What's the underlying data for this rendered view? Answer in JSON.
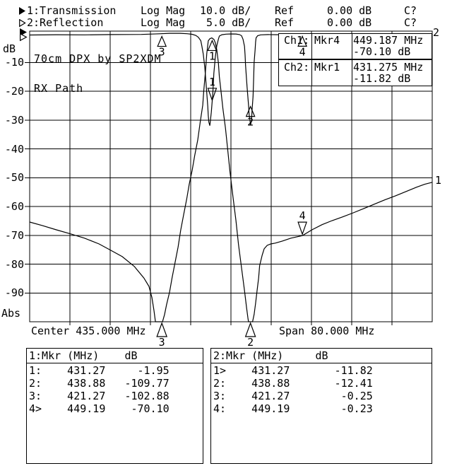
{
  "header": {
    "rows": [
      {
        "trace": "1:Transmission",
        "format": "Log Mag",
        "scale": "10.0 dB/",
        "ref": "Ref",
        "ref_value": "0.00 dB",
        "status": "C?",
        "active": true
      },
      {
        "trace": "2:Reflection",
        "format": "Log Mag",
        "scale": " 5.0 dB/",
        "ref": "Ref",
        "ref_value": "0.00 dB",
        "status": "C?",
        "active": false
      }
    ]
  },
  "axis": {
    "unit": "dB",
    "bottom_label": "Abs",
    "ticks": [
      "-10",
      "-20",
      "-30",
      "-40",
      "-50",
      "-60",
      "-70",
      "-80",
      "-90"
    ]
  },
  "annotation": {
    "line1": "70cm DPX by SP2XDM",
    "line2": "RX Path"
  },
  "readouts": [
    {
      "channel": "Ch1:",
      "marker": "Mkr4",
      "freq": "449.187 MHz",
      "level": "-70.10 dB"
    },
    {
      "channel": "Ch2:",
      "marker": "Mkr1",
      "freq": "431.275 MHz",
      "level": "-11.82 dB"
    }
  ],
  "xaxis": {
    "center": "Center 435.000 MHz",
    "span": "Span 80.000 MHz"
  },
  "trace_edge_labels": {
    "reflection": "2",
    "transmission": "1"
  },
  "marker_tables": [
    {
      "header": "1:Mkr (MHz)    dB",
      "rows": [
        "1:    431.27     -1.95",
        "2:    438.88   -109.77",
        "3:    421.27   -102.88",
        "4>    449.19    -70.10"
      ]
    },
    {
      "header": "2:Mkr (MHz)     dB",
      "rows": [
        "1>    431.27       -11.82",
        "2:    438.88       -12.41",
        "3:    421.27        -0.25",
        "4:    449.19        -0.23"
      ]
    }
  ],
  "chart_data": {
    "type": "line",
    "title": "70cm DPX by SP2XDM",
    "subtitle": "RX Path",
    "x_center_mhz": 435.0,
    "x_span_mhz": 80.0,
    "x_range_mhz": [
      395,
      475
    ],
    "grid": true,
    "ylabel": "dB",
    "series": [
      {
        "name": "Transmission",
        "channel": 1,
        "scale_db_per_div": 10.0,
        "ref_db": 0.0,
        "points": [
          [
            395,
            -65.4
          ],
          [
            397.5,
            -66.6
          ],
          [
            400.3,
            -68.1
          ],
          [
            403.1,
            -69.5
          ],
          [
            405.9,
            -71
          ],
          [
            408.8,
            -73
          ],
          [
            411.1,
            -75.2
          ],
          [
            413.4,
            -77.4
          ],
          [
            415.8,
            -80.8
          ],
          [
            417.7,
            -84.8
          ],
          [
            418.7,
            -87.7
          ],
          [
            419.3,
            -91.6
          ],
          [
            419.7,
            -96.1
          ],
          [
            420,
            -100.5
          ],
          [
            421.4,
            -100.5
          ],
          [
            421.8,
            -97.5
          ],
          [
            422.2,
            -94.1
          ],
          [
            422.8,
            -89.7
          ],
          [
            423.3,
            -84.8
          ],
          [
            423.9,
            -79.4
          ],
          [
            424.5,
            -74
          ],
          [
            425,
            -68.3
          ],
          [
            425.6,
            -62.9
          ],
          [
            426.2,
            -57.5
          ],
          [
            426.7,
            -52.3
          ],
          [
            427.3,
            -47.4
          ],
          [
            427.8,
            -42.3
          ],
          [
            428.4,
            -36.9
          ],
          [
            428.9,
            -30.7
          ],
          [
            429.4,
            -24.8
          ],
          [
            429.6,
            -19.9
          ],
          [
            429.9,
            -13.8
          ],
          [
            430.2,
            -6.9
          ],
          [
            430.5,
            -2.5
          ],
          [
            430.8,
            -1.8
          ],
          [
            431.2,
            -1.5
          ],
          [
            431.6,
            -2
          ],
          [
            431.9,
            -3.2
          ],
          [
            432.2,
            -5.7
          ],
          [
            432.5,
            -10.1
          ],
          [
            432.7,
            -15
          ],
          [
            433,
            -19.7
          ],
          [
            433.4,
            -26
          ],
          [
            433.9,
            -32.7
          ],
          [
            434.3,
            -39.3
          ],
          [
            434.8,
            -47.9
          ],
          [
            435.4,
            -56.5
          ],
          [
            436,
            -64.9
          ],
          [
            436.5,
            -73.2
          ],
          [
            437.1,
            -81.3
          ],
          [
            437.7,
            -89.2
          ],
          [
            438.1,
            -95.1
          ],
          [
            438.4,
            -99
          ],
          [
            438.5,
            -100.5
          ],
          [
            439.3,
            -100.5
          ],
          [
            439.6,
            -97.5
          ],
          [
            439.9,
            -93.6
          ],
          [
            440.2,
            -89.2
          ],
          [
            440.5,
            -84.8
          ],
          [
            440.7,
            -80.6
          ],
          [
            441.2,
            -76.9
          ],
          [
            441.6,
            -74.7
          ],
          [
            442.2,
            -73.5
          ],
          [
            442.9,
            -73
          ],
          [
            443.8,
            -72.7
          ],
          [
            445.2,
            -72
          ],
          [
            446.9,
            -71
          ],
          [
            449.2,
            -70.1
          ],
          [
            451.1,
            -68.1
          ],
          [
            453.1,
            -66.3
          ],
          [
            455.1,
            -64.9
          ],
          [
            457.2,
            -63.6
          ],
          [
            459.3,
            -62.2
          ],
          [
            461.4,
            -60.7
          ],
          [
            463.5,
            -59.2
          ],
          [
            465.6,
            -57.7
          ],
          [
            467.7,
            -56.3
          ],
          [
            469.8,
            -54.8
          ],
          [
            471.9,
            -53.3
          ],
          [
            473.5,
            -52.3
          ],
          [
            475,
            -51.6
          ]
        ]
      },
      {
        "name": "Reflection",
        "channel": 2,
        "scale_db_per_div": 5.0,
        "ref_db": 0.0,
        "points": [
          [
            395,
            -0.25
          ],
          [
            400.3,
            -0.2
          ],
          [
            405.9,
            -0.22
          ],
          [
            411.1,
            -0.17
          ],
          [
            417.2,
            -0.15
          ],
          [
            420.7,
            -0.04
          ],
          [
            422.8,
            0.05
          ],
          [
            424.9,
            0.05
          ],
          [
            426.3,
            -0.02
          ],
          [
            427.3,
            -0.12
          ],
          [
            428,
            -0.31
          ],
          [
            428.5,
            -0.61
          ],
          [
            429,
            -1.23
          ],
          [
            429.2,
            -2.09
          ],
          [
            429.5,
            -3.56
          ],
          [
            429.8,
            -5.9
          ],
          [
            430.1,
            -9.21
          ],
          [
            430.4,
            -12.65
          ],
          [
            430.5,
            -14.25
          ],
          [
            430.6,
            -15.36
          ],
          [
            430.8,
            -15.97
          ],
          [
            430.9,
            -15.23
          ],
          [
            431.1,
            -13.64
          ],
          [
            431.4,
            -10.44
          ],
          [
            431.6,
            -6.88
          ],
          [
            431.9,
            -4.05
          ],
          [
            432.2,
            -2.09
          ],
          [
            432.5,
            -0.98
          ],
          [
            432.7,
            -0.43
          ],
          [
            433.2,
            -0.2
          ],
          [
            434,
            -0.1
          ],
          [
            435,
            -0.06
          ],
          [
            436,
            -0.07
          ],
          [
            436.7,
            -0.17
          ],
          [
            437.1,
            -0.37
          ],
          [
            437.4,
            -0.98
          ],
          [
            437.7,
            -2.21
          ],
          [
            437.8,
            -3.69
          ],
          [
            437.9,
            -5.53
          ],
          [
            438.2,
            -9.21
          ],
          [
            438.5,
            -12.41
          ],
          [
            438.6,
            -14
          ],
          [
            438.8,
            -15.23
          ],
          [
            438.9,
            -15.85
          ],
          [
            439.1,
            -14.99
          ],
          [
            439.2,
            -13.27
          ],
          [
            439.4,
            -10.93
          ],
          [
            439.5,
            -7.99
          ],
          [
            439.6,
            -5.04
          ],
          [
            439.8,
            -2.83
          ],
          [
            439.9,
            -1.47
          ],
          [
            440,
            -0.74
          ],
          [
            440.3,
            -0.37
          ],
          [
            440.9,
            -0.22
          ],
          [
            442.4,
            -0.17
          ],
          [
            444.6,
            -0.2
          ],
          [
            446.7,
            -0.16
          ],
          [
            448.7,
            -0.22
          ],
          [
            450.9,
            -0.17
          ],
          [
            453,
            -0.21
          ],
          [
            455.1,
            -0.16
          ],
          [
            457.9,
            -0.2
          ],
          [
            460.7,
            -0.16
          ],
          [
            463.5,
            -0.2
          ],
          [
            466.3,
            -0.16
          ],
          [
            469.1,
            -0.2
          ],
          [
            471.9,
            -0.17
          ],
          [
            475,
            -0.18
          ]
        ]
      }
    ],
    "markers": [
      {
        "n": "1",
        "freq_mhz": 431.27,
        "ch1_db": -1.95,
        "ch2_db": -11.82
      },
      {
        "n": "2",
        "freq_mhz": 438.88,
        "ch1_db": -109.77,
        "ch2_db": -12.41
      },
      {
        "n": "3",
        "freq_mhz": 421.27,
        "ch1_db": -102.88,
        "ch2_db": -0.25
      },
      {
        "n": "4",
        "freq_mhz": 449.19,
        "ch1_db": -70.1,
        "ch2_db": -0.23
      }
    ],
    "marker_glyphs": [
      {
        "label": "3",
        "series": 0,
        "freq": 421.27,
        "style": "bottom"
      },
      {
        "label": "2",
        "series": 0,
        "freq": 438.88,
        "style": "bottom"
      },
      {
        "label": "1",
        "series": 0,
        "freq": 431.27,
        "db": -1.95,
        "style": "below"
      },
      {
        "label": "4",
        "series": 0,
        "freq": 449.19,
        "db": -70.1,
        "style": "above"
      },
      {
        "label": "1",
        "series": 1,
        "freq": 431.27,
        "db": -11.82,
        "style": "above"
      },
      {
        "label": "2",
        "series": 1,
        "freq": 438.88,
        "db": -12.41,
        "style": "below"
      },
      {
        "label": "3",
        "series": 1,
        "freq": 421.27,
        "db": -0.25,
        "style": "below"
      },
      {
        "label": "4",
        "series": 1,
        "freq": 449.19,
        "db": -0.23,
        "style": "below"
      }
    ]
  }
}
